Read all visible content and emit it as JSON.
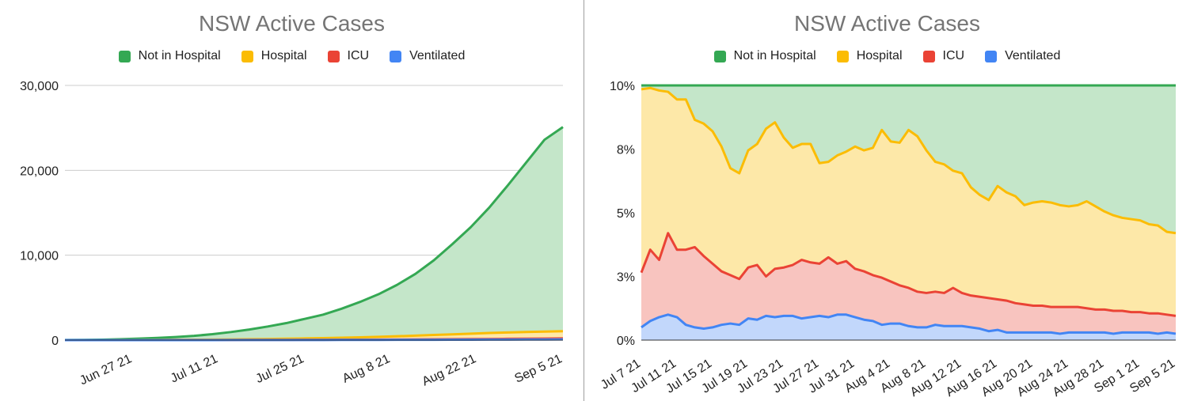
{
  "chart_data": [
    {
      "type": "area",
      "title": "NSW Active Cases",
      "legend_position": "top",
      "grid": true,
      "ylim": [
        0,
        30000
      ],
      "y_ticks": [
        "0",
        "10,000",
        "20,000",
        "30,000"
      ],
      "y_tick_values": [
        0,
        10000,
        20000,
        30000
      ],
      "x_ticks": [
        "Jun 27 21",
        "Jul 11 21",
        "Jul 25 21",
        "Aug 8 21",
        "Aug 22 21",
        "Sep 5 21"
      ],
      "x_tick_days": [
        11,
        25,
        39,
        53,
        67,
        81
      ],
      "x_days": [
        0,
        3,
        6,
        9,
        12,
        15,
        18,
        21,
        24,
        27,
        30,
        33,
        36,
        39,
        42,
        45,
        48,
        51,
        54,
        57,
        60,
        63,
        66,
        69,
        72,
        75,
        78,
        81
      ],
      "series": [
        {
          "name": "Not in Hospital",
          "color": "#34a853",
          "fill": "#c4e6c9",
          "values": [
            10,
            25,
            50,
            100,
            170,
            260,
            360,
            500,
            700,
            950,
            1250,
            1600,
            2000,
            2500,
            3000,
            3700,
            4500,
            5400,
            6500,
            7800,
            9400,
            11300,
            13300,
            15600,
            18200,
            20900,
            23600,
            25100
          ]
        },
        {
          "name": "Hospital",
          "color": "#fbbc04",
          "fill": "#fde8a8",
          "values": [
            1,
            2,
            4,
            8,
            14,
            22,
            32,
            45,
            62,
            82,
            105,
            130,
            160,
            195,
            235,
            280,
            330,
            390,
            450,
            520,
            600,
            680,
            760,
            840,
            900,
            950,
            1000,
            1050
          ]
        },
        {
          "name": "ICU",
          "color": "#ea4335",
          "fill": "#f8c4bf",
          "values": [
            0,
            1,
            1,
            2,
            3,
            5,
            7,
            9,
            12,
            15,
            18,
            22,
            27,
            32,
            38,
            45,
            52,
            60,
            70,
            80,
            92,
            105,
            118,
            132,
            148,
            165,
            180,
            195
          ]
        },
        {
          "name": "Ventilated",
          "color": "#4285f4",
          "fill": "#c2d7fb",
          "values": [
            0,
            0,
            1,
            1,
            1,
            2,
            3,
            4,
            5,
            6,
            8,
            9,
            11,
            13,
            16,
            19,
            22,
            26,
            30,
            34,
            38,
            43,
            48,
            54,
            60,
            66,
            72,
            78
          ]
        }
      ]
    },
    {
      "type": "area",
      "title": "NSW Active Cases",
      "legend_position": "top",
      "grid": true,
      "ylim": [
        0,
        10
      ],
      "y_ticks": [
        "0%",
        "3%",
        "5%",
        "8%",
        "10%"
      ],
      "y_tick_values": [
        0,
        2.5,
        5,
        7.5,
        10
      ],
      "x_ticks": [
        "Jul 7 21",
        "Jul 11 21",
        "Jul 15 21",
        "Jul 19 21",
        "Jul 23 21",
        "Jul 27 21",
        "Jul 31 21",
        "Aug 4 21",
        "Aug 8 21",
        "Aug 12 21",
        "Aug 16 21",
        "Aug 20 21",
        "Aug 24 21",
        "Aug 28 21",
        "Sep 1 21",
        "Sep 5 21"
      ],
      "x_tick_days": [
        0,
        4,
        8,
        12,
        16,
        20,
        24,
        28,
        32,
        36,
        40,
        44,
        48,
        52,
        56,
        60
      ],
      "x_days": [
        0,
        1,
        2,
        3,
        4,
        5,
        6,
        7,
        8,
        9,
        10,
        11,
        12,
        13,
        14,
        15,
        16,
        17,
        18,
        19,
        20,
        21,
        22,
        23,
        24,
        25,
        26,
        27,
        28,
        29,
        30,
        31,
        32,
        33,
        34,
        35,
        36,
        37,
        38,
        39,
        40,
        41,
        42,
        43,
        44,
        45,
        46,
        47,
        48,
        49,
        50,
        51,
        52,
        53,
        54,
        55,
        56,
        57,
        58,
        59,
        60
      ],
      "series": [
        {
          "name": "Not in Hospital",
          "color": "#34a853",
          "fill": "#c4e6c9",
          "values": [
            10,
            10,
            10,
            10,
            10,
            10,
            10,
            10,
            10,
            10,
            10,
            10,
            10,
            10,
            10,
            10,
            10,
            10,
            10,
            10,
            10,
            10,
            10,
            10,
            10,
            10,
            10,
            10,
            10,
            10,
            10,
            10,
            10,
            10,
            10,
            10,
            10,
            10,
            10,
            10,
            10,
            10,
            10,
            10,
            10,
            10,
            10,
            10,
            10,
            10,
            10,
            10,
            10,
            10,
            10,
            10,
            10,
            10,
            10,
            10,
            10
          ]
        },
        {
          "name": "Hospital",
          "color": "#fbbc04",
          "fill": "#fde8a8",
          "values": [
            9.85,
            9.9,
            9.8,
            9.75,
            9.45,
            9.45,
            8.65,
            8.5,
            8.2,
            7.6,
            6.75,
            6.55,
            7.45,
            7.7,
            8.3,
            8.55,
            7.95,
            7.55,
            7.7,
            7.7,
            6.95,
            7.0,
            7.25,
            7.4,
            7.6,
            7.45,
            7.55,
            8.25,
            7.8,
            7.75,
            8.25,
            8.0,
            7.45,
            7.0,
            6.9,
            6.65,
            6.55,
            6.0,
            5.7,
            5.5,
            6.05,
            5.8,
            5.65,
            5.3,
            5.4,
            5.45,
            5.4,
            5.3,
            5.25,
            5.3,
            5.45,
            5.25,
            5.05,
            4.9,
            4.8,
            4.75,
            4.7,
            4.55,
            4.5,
            4.25,
            4.2
          ]
        },
        {
          "name": "ICU",
          "color": "#ea4335",
          "fill": "#f8c4bf",
          "values": [
            2.65,
            3.55,
            3.15,
            4.2,
            3.55,
            3.55,
            3.65,
            3.3,
            3.0,
            2.7,
            2.55,
            2.4,
            2.85,
            2.95,
            2.5,
            2.8,
            2.85,
            2.95,
            3.15,
            3.05,
            3.0,
            3.25,
            3.0,
            3.1,
            2.8,
            2.7,
            2.55,
            2.45,
            2.3,
            2.15,
            2.05,
            1.9,
            1.85,
            1.9,
            1.85,
            2.05,
            1.85,
            1.75,
            1.7,
            1.65,
            1.6,
            1.55,
            1.45,
            1.4,
            1.35,
            1.35,
            1.3,
            1.3,
            1.3,
            1.3,
            1.25,
            1.2,
            1.2,
            1.15,
            1.15,
            1.1,
            1.1,
            1.05,
            1.05,
            1.0,
            0.95
          ]
        },
        {
          "name": "Ventilated",
          "color": "#4285f4",
          "fill": "#c2d7fb",
          "values": [
            0.5,
            0.75,
            0.9,
            1.0,
            0.9,
            0.6,
            0.5,
            0.45,
            0.5,
            0.6,
            0.65,
            0.6,
            0.85,
            0.8,
            0.95,
            0.9,
            0.95,
            0.95,
            0.85,
            0.9,
            0.95,
            0.9,
            1.0,
            1.0,
            0.9,
            0.8,
            0.75,
            0.6,
            0.65,
            0.65,
            0.55,
            0.5,
            0.5,
            0.6,
            0.55,
            0.55,
            0.55,
            0.5,
            0.45,
            0.35,
            0.4,
            0.3,
            0.3,
            0.3,
            0.3,
            0.3,
            0.3,
            0.25,
            0.3,
            0.3,
            0.3,
            0.3,
            0.3,
            0.25,
            0.3,
            0.3,
            0.3,
            0.3,
            0.25,
            0.3,
            0.25
          ]
        }
      ]
    }
  ]
}
